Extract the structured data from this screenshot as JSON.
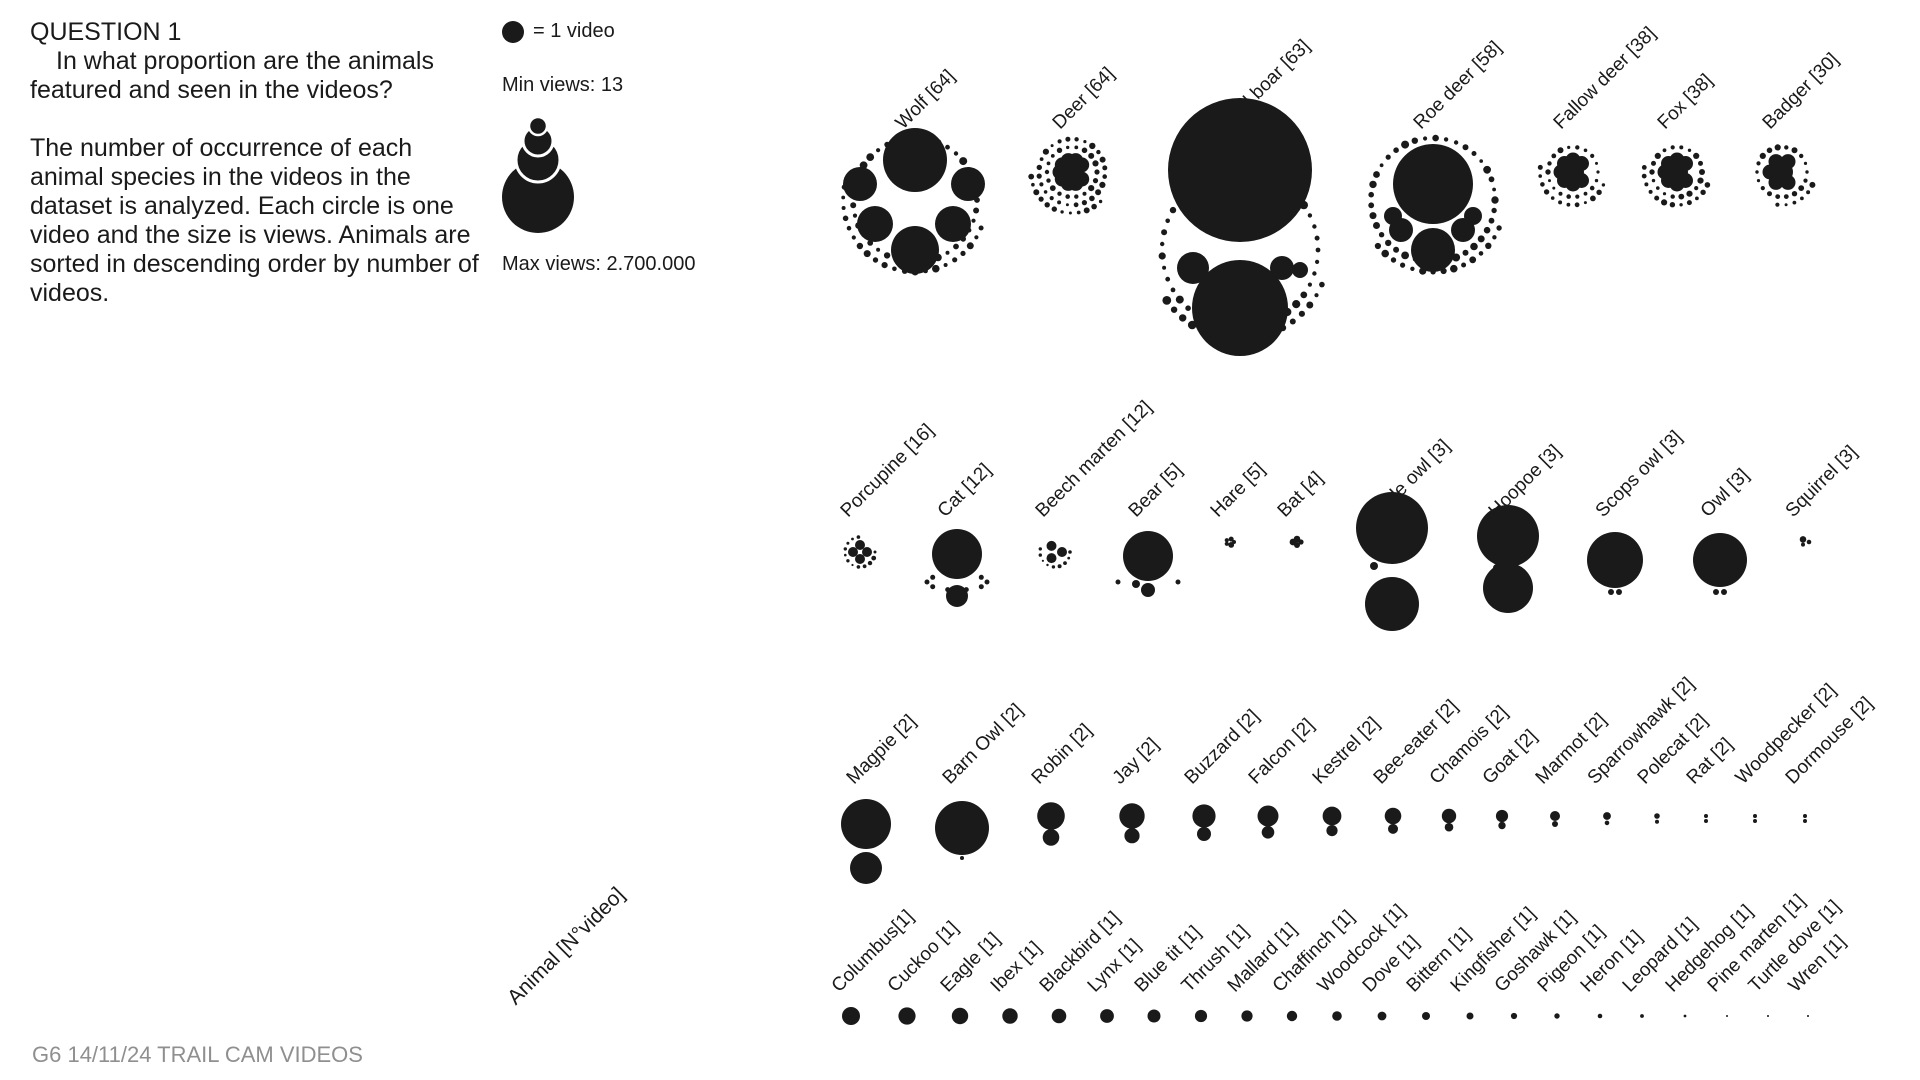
{
  "question": {
    "title": "QUESTION 1",
    "subtitle": "In what proportion are the animals featured and seen in the videos?",
    "description": "The number of occurrence of each animal species in the videos in the dataset is analyzed. Each circle is one video and the size is views. Animals are sorted in descending order by number of videos."
  },
  "legend": {
    "unit": "= 1 video",
    "min_views": "Min views: 13",
    "max_views": "Max views: 2.700.000"
  },
  "axis_label": "Animal [N°video]",
  "footer": "G6 14/11/24 TRAIL CAM VIDEOS",
  "colors": {
    "ink": "#1a1a1a",
    "muted": "#8f8f8f",
    "background": "#ffffff"
  },
  "chart_data": {
    "type": "packed-circle",
    "unit": "1 circle = 1 video, area = views",
    "views_range": [
      13,
      2700000
    ],
    "animals": [
      {
        "label": "Wolf [64]",
        "videos": 64
      },
      {
        "label": "Deer [64]",
        "videos": 64
      },
      {
        "label": "Wild boar [63]",
        "videos": 63
      },
      {
        "label": "Roe deer [58]",
        "videos": 58
      },
      {
        "label": "Fallow deer [38]",
        "videos": 38
      },
      {
        "label": "Fox [38]",
        "videos": 38
      },
      {
        "label": "Badger [30]",
        "videos": 30
      },
      {
        "label": "Porcupine [16]",
        "videos": 16
      },
      {
        "label": "Cat [12]",
        "videos": 12
      },
      {
        "label": "Beech marten [12]",
        "videos": 12
      },
      {
        "label": "Bear [5]",
        "videos": 5
      },
      {
        "label": "Hare [5]",
        "videos": 5
      },
      {
        "label": "Bat [4]",
        "videos": 4
      },
      {
        "label": "Little owl [3]",
        "videos": 3
      },
      {
        "label": "Hoopoe [3]",
        "videos": 3
      },
      {
        "label": "Scops owl [3]",
        "videos": 3
      },
      {
        "label": "Owl [3]",
        "videos": 3
      },
      {
        "label": "Squirrel [3]",
        "videos": 3
      },
      {
        "label": "Magpie [2]",
        "videos": 2
      },
      {
        "label": "Barn Owl [2]",
        "videos": 2
      },
      {
        "label": "Robin [2]",
        "videos": 2
      },
      {
        "label": "Jay [2]",
        "videos": 2
      },
      {
        "label": "Buzzard [2]",
        "videos": 2
      },
      {
        "label": "Falcon [2]",
        "videos": 2
      },
      {
        "label": "Kestrel [2]",
        "videos": 2
      },
      {
        "label": "Bee-eater [2]",
        "videos": 2
      },
      {
        "label": "Chamois [2]",
        "videos": 2
      },
      {
        "label": "Goat [2]",
        "videos": 2
      },
      {
        "label": "Marmot [2]",
        "videos": 2
      },
      {
        "label": "Sparrowhawk [2]",
        "videos": 2
      },
      {
        "label": "Polecat [2]",
        "videos": 2
      },
      {
        "label": "Rat [2]",
        "videos": 2
      },
      {
        "label": "Woodpecker [2]",
        "videos": 2
      },
      {
        "label": "Dormouse [2]",
        "videos": 2
      },
      {
        "label": "Columbus[1]",
        "videos": 1
      },
      {
        "label": "Cuckoo [1]",
        "videos": 1
      },
      {
        "label": "Eagle [1]",
        "videos": 1
      },
      {
        "label": "Ibex [1]",
        "videos": 1
      },
      {
        "label": "Blackbird [1]",
        "videos": 1
      },
      {
        "label": "Lynx [1]",
        "videos": 1
      },
      {
        "label": "Blue tit [1]",
        "videos": 1
      },
      {
        "label": "Thrush [1]",
        "videos": 1
      },
      {
        "label": "Mallard [1]",
        "videos": 1
      },
      {
        "label": "Chaffinch [1]",
        "videos": 1
      },
      {
        "label": "Woodcock [1]",
        "videos": 1
      },
      {
        "label": "Dove [1]",
        "videos": 1
      },
      {
        "label": "Bittern [1]",
        "videos": 1
      },
      {
        "label": "Kingfisher [1]",
        "videos": 1
      },
      {
        "label": "Goshawk [1]",
        "videos": 1
      },
      {
        "label": "Pigeon [1]",
        "videos": 1
      },
      {
        "label": "Heron [1]",
        "videos": 1
      },
      {
        "label": "Leopard [1]",
        "videos": 1
      },
      {
        "label": "Hedgehog [1]",
        "videos": 1
      },
      {
        "label": "Pine marten [1]",
        "videos": 1
      },
      {
        "label": "Turtle dove [1]",
        "videos": 1
      },
      {
        "label": "Wren [1]",
        "videos": 1
      }
    ]
  }
}
